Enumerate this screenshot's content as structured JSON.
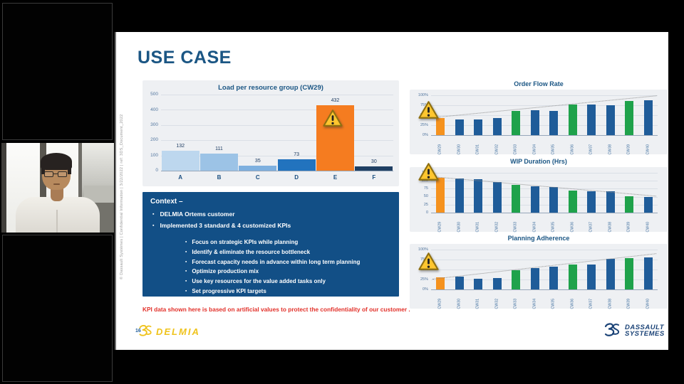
{
  "slide": {
    "title": "USE CASE",
    "page_number": "16",
    "sidebar_text": "© Dassault Systèmes | Confidential Information | 3/22/2022 | ref: 3DS_Document_2022",
    "disclaimer": "KPI data shown here is based on artificial values to protect the confidentiality of our customer .",
    "context": {
      "title": "Context –",
      "bullets": [
        "DELMIA Ortems customer",
        "Implemented 3 standard & 4 customized KPIs"
      ],
      "sub_bullets": [
        "Focus on strategic KPIs while planning",
        "Identify & eliminate the resource bottleneck",
        "Forecast capacity needs in advance within long term planning",
        "Optimize production mix",
        "Use key resources for the value added tasks only",
        "Set progressive KPI targets"
      ]
    },
    "footer": {
      "delmia_logo_text": "DELMIA",
      "dassault_logo_line1": "DASSAULT",
      "dassault_logo_line2": "SYSTEMES"
    }
  },
  "icons": {
    "warning": "warning-triangle"
  },
  "colors": {
    "title_blue": "#1B5684",
    "context_bg": "#124F86",
    "panel_bg": "#EEF0F3",
    "bar_blue": "#1F5C99",
    "bar_green": "#1FA24B",
    "bar_orange": "#F5921E",
    "disclaimer_red": "#E2312A",
    "delmia_gold": "#EFC31C",
    "dassault_navy": "#1B4377"
  },
  "chart_data": [
    {
      "type": "bar",
      "title": "Load per resource group (CW29)",
      "categories": [
        "A",
        "B",
        "C",
        "D",
        "E",
        "F"
      ],
      "values": [
        132,
        111,
        35,
        73,
        432,
        30
      ],
      "bar_colors": [
        "#BDD7EE",
        "#9CC3E6",
        "#7EB0DF",
        "#2273BE",
        "#F57C20",
        "#1F3F63"
      ],
      "ylim": [
        0,
        500
      ],
      "yticks": [
        0,
        100,
        200,
        300,
        400,
        500
      ],
      "ytick_suffix": "",
      "show_value_labels": true,
      "warning_on": "E",
      "grid": true,
      "legend": false
    },
    {
      "type": "bar",
      "title": "Order Flow Rate",
      "categories": [
        "CW29",
        "CW30",
        "CW31",
        "CW32",
        "CW33",
        "CW34",
        "CW35",
        "CW36",
        "CW37",
        "CW38",
        "CW39",
        "CW40"
      ],
      "values": [
        42,
        40,
        40,
        43,
        60,
        63,
        61,
        76,
        77,
        75,
        85,
        88
      ],
      "bar_colors": [
        "#F5921E",
        "#1F5C99",
        "#1F5C99",
        "#1F5C99",
        "#1FA24B",
        "#1F5C99",
        "#1F5C99",
        "#1FA24B",
        "#1F5C99",
        "#1F5C99",
        "#1FA24B",
        "#1F5C99"
      ],
      "ylim": [
        0,
        100
      ],
      "yticks": [
        0,
        25,
        50,
        75,
        100
      ],
      "ytick_suffix": "%",
      "show_value_labels": false,
      "trend": {
        "start": 44,
        "end": 99
      },
      "warning_on": "CW29",
      "grid": true,
      "legend": false
    },
    {
      "type": "bar",
      "title": "WIP Duration (Hrs)",
      "categories": [
        "CW29",
        "CW30",
        "CW31",
        "CW32",
        "CW33",
        "CW34",
        "CW35",
        "CW36",
        "CW37",
        "CW38",
        "CW39",
        "CW40"
      ],
      "values": [
        110,
        107,
        106,
        97,
        88,
        83,
        81,
        70,
        67,
        66,
        51,
        50
      ],
      "bar_colors": [
        "#F5921E",
        "#1F5C99",
        "#1F5C99",
        "#1F5C99",
        "#1FA24B",
        "#1F5C99",
        "#1F5C99",
        "#1FA24B",
        "#1F5C99",
        "#1F5C99",
        "#1FA24B",
        "#1F5C99"
      ],
      "ylim": [
        0,
        125
      ],
      "yticks": [
        0,
        25,
        50,
        75,
        100,
        125
      ],
      "ytick_suffix": "",
      "show_value_labels": false,
      "trend": {
        "start": 114,
        "end": 53
      },
      "warning_on": "CW29",
      "grid": true,
      "legend": false
    },
    {
      "type": "bar",
      "title": "Planning Adherence",
      "categories": [
        "CW29",
        "CW30",
        "CW31",
        "CW32",
        "CW33",
        "CW34",
        "CW35",
        "CW36",
        "CW37",
        "CW38",
        "CW39",
        "CW40"
      ],
      "values": [
        30,
        32,
        26,
        28,
        48,
        53,
        58,
        62,
        63,
        76,
        79,
        81
      ],
      "bar_colors": [
        "#F5921E",
        "#1F5C99",
        "#1F5C99",
        "#1F5C99",
        "#1FA24B",
        "#1F5C99",
        "#1F5C99",
        "#1FA24B",
        "#1F5C99",
        "#1F5C99",
        "#1FA24B",
        "#1F5C99"
      ],
      "ylim": [
        0,
        100
      ],
      "yticks": [
        0,
        25,
        50,
        75,
        100
      ],
      "ytick_suffix": "%",
      "show_value_labels": false,
      "trend": {
        "start": 26,
        "end": 90
      },
      "warning_on": "CW29",
      "grid": true,
      "legend": false
    }
  ]
}
